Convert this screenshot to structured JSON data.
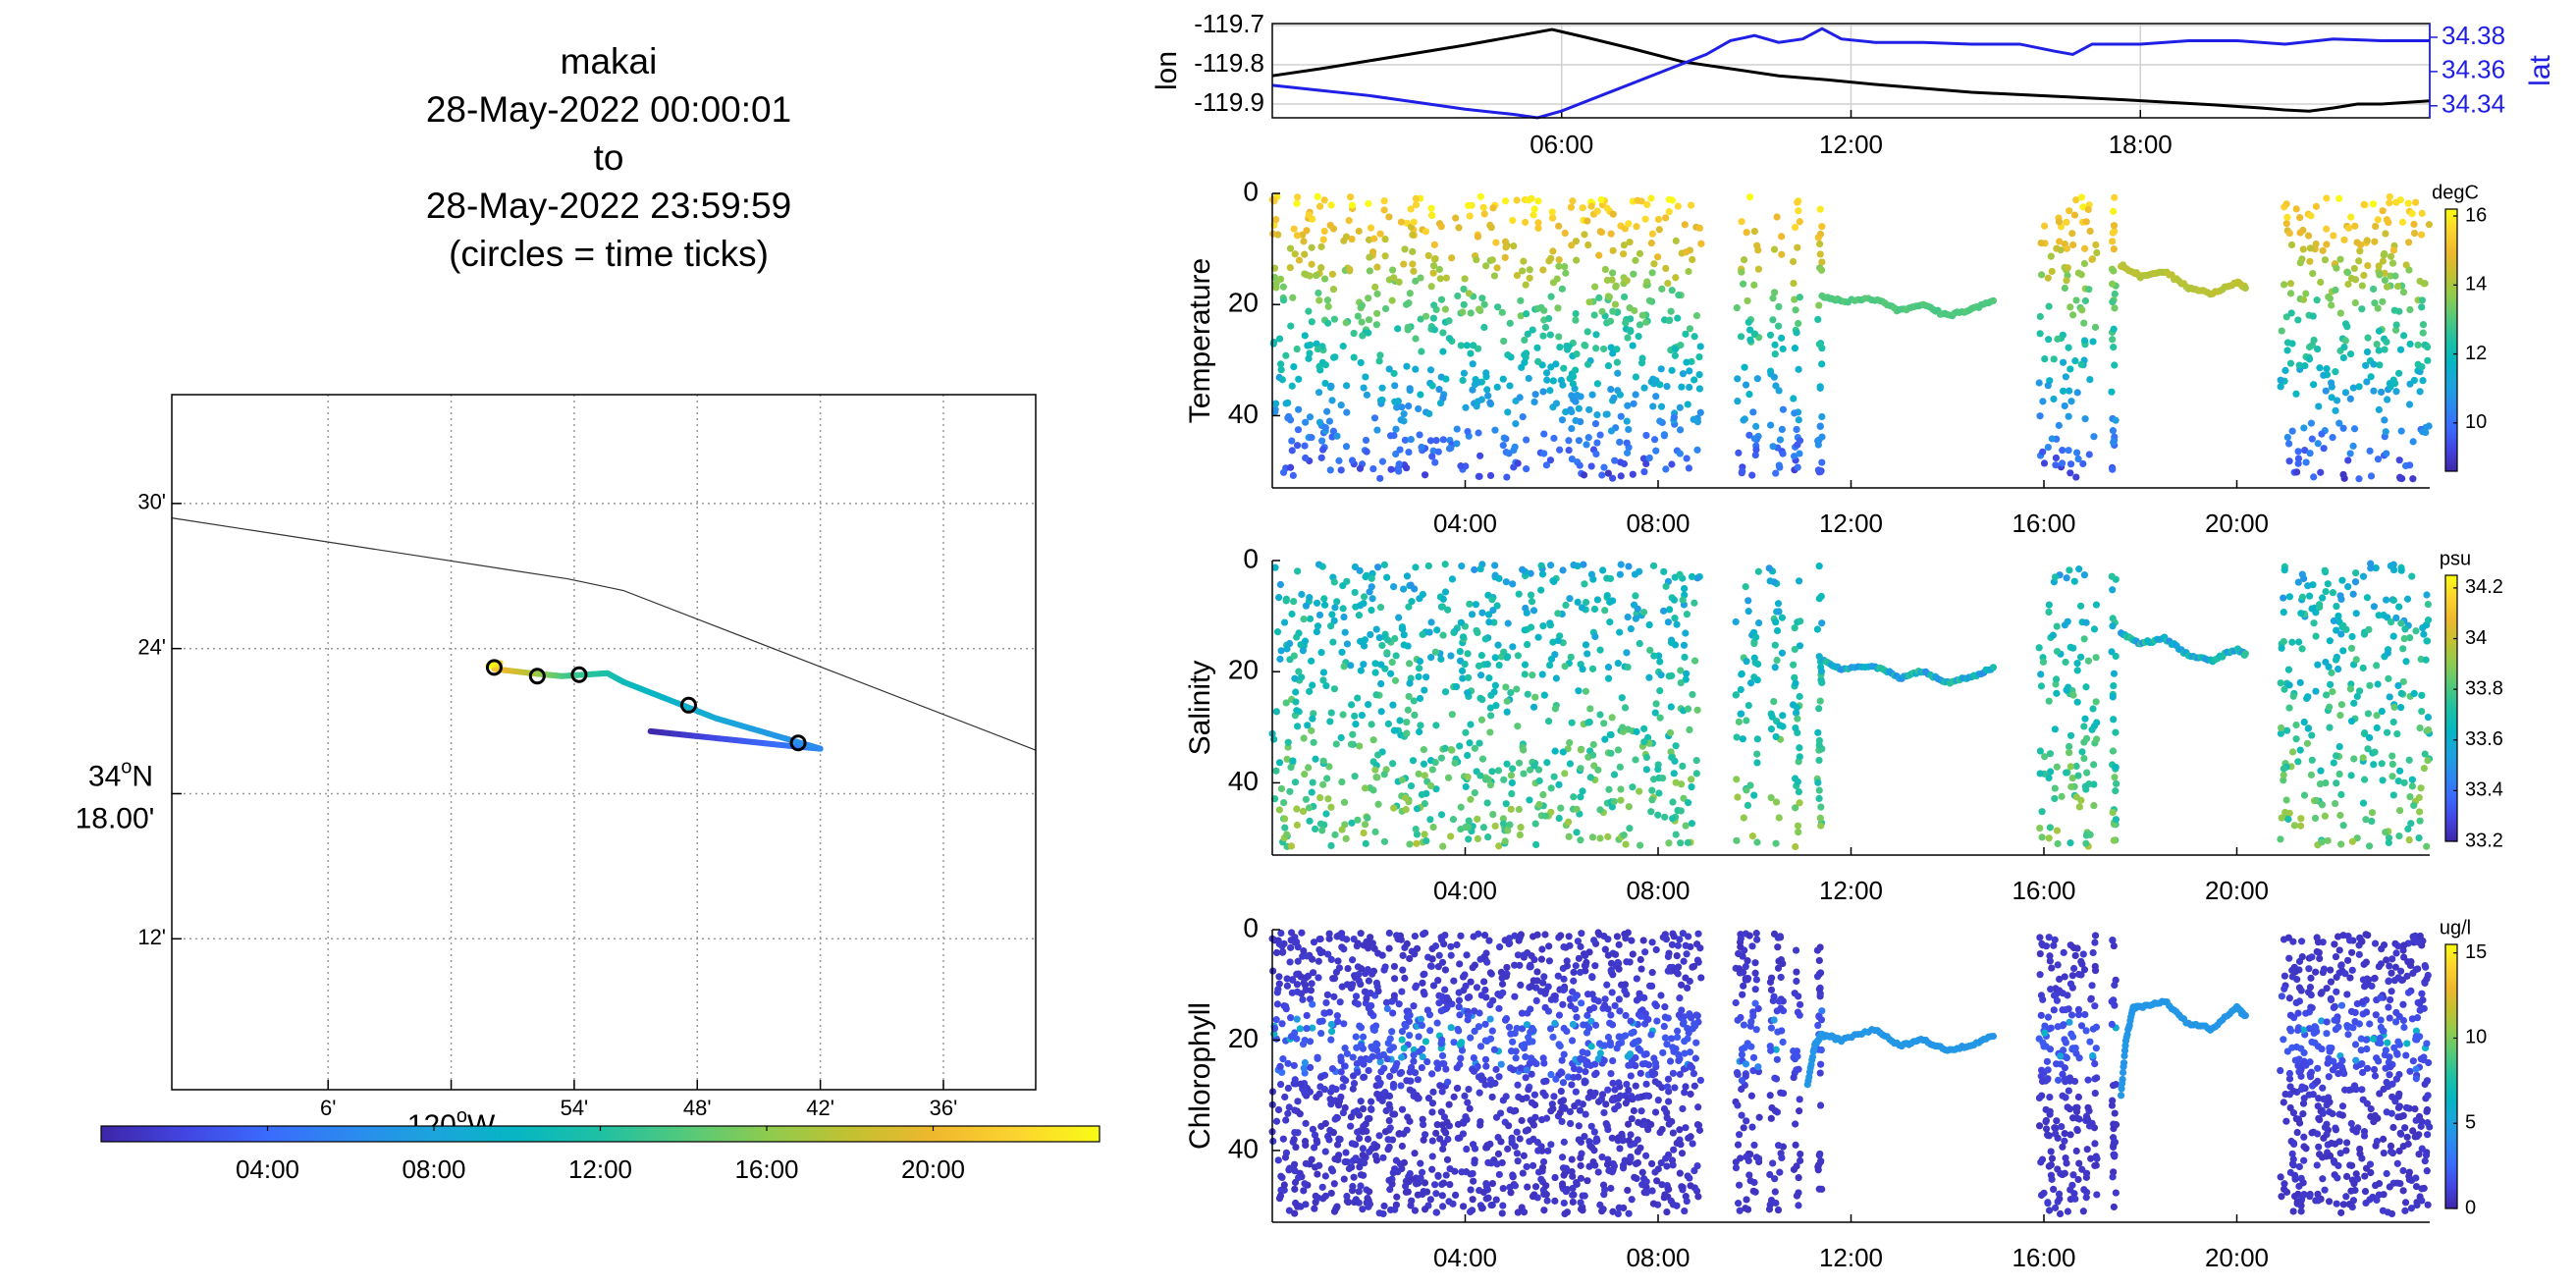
{
  "title": {
    "lines": [
      "makai",
      "28-May-2022 00:00:01",
      "to",
      "28-May-2022 23:59:59",
      "(circles = time ticks)"
    ]
  },
  "colors": {
    "lon_line": "#000000",
    "lat_line": "#1f1fe6",
    "axis": "#000000",
    "grid": "#b0b0b0",
    "parula": [
      "#3e26a8",
      "#4245e1",
      "#3a6bfc",
      "#2b8aef",
      "#1ba4dc",
      "#06b6c2",
      "#1fc0a3",
      "#52c97c",
      "#8dcb4f",
      "#c2c131",
      "#eeb82e",
      "#fcd42f",
      "#f9fb15"
    ]
  },
  "chart_data": [
    {
      "id": "track_map",
      "type": "scatter",
      "title": "",
      "xlabel": "",
      "ylabel": "",
      "xlim": [
        -120.227,
        -119.525
      ],
      "ylim": [
        34.096,
        34.575
      ],
      "x_ticks": [
        -120.1,
        -120.0,
        -119.9,
        -119.8,
        -119.7,
        -119.6
      ],
      "x_tick_labels": [
        "6'",
        "",
        "54'",
        "48'",
        "42'",
        "36'"
      ],
      "x_degree_label": "120",
      "x_degree_suffix": "W",
      "y_ticks": [
        34.2,
        34.3,
        34.4,
        34.5
      ],
      "y_tick_labels": [
        "12'",
        "",
        "24'",
        "30'"
      ],
      "y_degree_label": "34",
      "y_degree_suffix": "N",
      "y_degree_sublabel": "18.00'",
      "grid": true,
      "coastline": {
        "x": [
          -120.227,
          -119.905,
          -119.86,
          -119.525
        ],
        "y": [
          34.49,
          34.448,
          34.44,
          34.33
        ]
      },
      "track_segments": [
        {
          "hours": [
            0,
            4.5
          ],
          "x": [
            -119.838,
            -119.726
          ],
          "y": [
            34.343,
            34.333
          ]
        },
        {
          "hours": [
            4.5,
            5.8
          ],
          "x": [
            -119.726,
            -119.7
          ],
          "y": [
            34.333,
            34.331
          ]
        },
        {
          "hours": [
            5.8,
            8.5
          ],
          "x": [
            -119.7,
            -119.785
          ],
          "y": [
            34.331,
            34.352
          ]
        },
        {
          "hours": [
            8.5,
            10.5
          ],
          "x": [
            -119.785,
            -119.86
          ],
          "y": [
            34.352,
            34.377
          ]
        },
        {
          "hours": [
            10.5,
            11.6
          ],
          "x": [
            -119.86,
            -119.873
          ],
          "y": [
            34.377,
            34.383
          ]
        },
        {
          "hours": [
            11.6,
            13.5
          ],
          "x": [
            -119.873,
            -119.91
          ],
          "y": [
            34.383,
            34.381
          ]
        },
        {
          "hours": [
            13.5,
            17
          ],
          "x": [
            -119.91,
            -119.935
          ],
          "y": [
            34.381,
            34.383
          ]
        },
        {
          "hours": [
            17,
            20.5
          ],
          "x": [
            -119.935,
            -119.965
          ],
          "y": [
            34.383,
            34.386
          ]
        },
        {
          "hours": [
            20.5,
            22
          ],
          "x": [
            -119.965,
            -119.96
          ],
          "y": [
            34.386,
            34.39
          ]
        },
        {
          "hours": [
            22,
            24
          ],
          "x": [
            -119.96,
            -119.97
          ],
          "y": [
            34.39,
            34.388
          ]
        }
      ],
      "time_tick_circles": {
        "x": [
          -119.718,
          -119.807,
          -119.896,
          -119.93,
          -119.965
        ],
        "y": [
          34.335,
          34.361,
          34.382,
          34.381,
          34.387
        ]
      }
    },
    {
      "id": "time_colorbar",
      "type": "heatmap",
      "range": [
        0,
        24
      ],
      "ticks": [
        4,
        8,
        12,
        16,
        20
      ],
      "tick_labels": [
        "04:00",
        "08:00",
        "12:00",
        "16:00",
        "20:00"
      ]
    },
    {
      "id": "lon_lat",
      "type": "line",
      "xlim": [
        0,
        24
      ],
      "x_ticks": [
        6,
        12,
        18
      ],
      "x_tick_labels": [
        "06:00",
        "12:00",
        "18:00"
      ],
      "ylabel": "lon",
      "ylim": [
        -119.935,
        -119.695
      ],
      "y_ticks": [
        -119.9,
        -119.8,
        -119.7
      ],
      "y_tick_labels": [
        "-119.9",
        "-119.8",
        "-119.7"
      ],
      "y2label": "lat",
      "y2lim": [
        34.333,
        34.388
      ],
      "y2_ticks": [
        34.34,
        34.36,
        34.38
      ],
      "y2_tick_labels": [
        "34.34",
        "34.36",
        "34.38"
      ],
      "grid": true,
      "series": [
        {
          "axis": "left",
          "x": [
            0,
            1,
            2,
            3,
            4,
            5,
            5.8,
            6.5,
            7.5,
            8.5,
            9.5,
            10.5,
            11.5,
            12.5,
            13.5,
            14.5,
            15.5,
            16.5,
            17.5,
            18.5,
            19.5,
            20.5,
            21,
            21.5,
            22,
            22.5,
            23,
            24
          ],
          "y": [
            -119.828,
            -119.81,
            -119.79,
            -119.77,
            -119.75,
            -119.728,
            -119.71,
            -119.73,
            -119.76,
            -119.792,
            -119.81,
            -119.828,
            -119.838,
            -119.85,
            -119.86,
            -119.87,
            -119.876,
            -119.882,
            -119.888,
            -119.895,
            -119.902,
            -119.91,
            -119.915,
            -119.918,
            -119.91,
            -119.9,
            -119.9,
            -119.892
          ]
        },
        {
          "axis": "right",
          "x": [
            0,
            1,
            2,
            3,
            4,
            5,
            5.5,
            6,
            7,
            8,
            9,
            9.5,
            10,
            10.5,
            11,
            11.4,
            11.8,
            12.5,
            13.5,
            14.5,
            15.5,
            16.2,
            16.6,
            17,
            18,
            19,
            20,
            21,
            22,
            23,
            24
          ],
          "y": [
            34.352,
            34.349,
            34.346,
            34.342,
            34.338,
            34.335,
            34.333,
            34.337,
            34.348,
            34.359,
            34.37,
            34.378,
            34.381,
            34.377,
            34.379,
            34.385,
            34.379,
            34.377,
            34.377,
            34.376,
            34.376,
            34.372,
            34.37,
            34.376,
            34.376,
            34.378,
            34.378,
            34.376,
            34.379,
            34.378,
            34.378
          ]
        }
      ]
    },
    {
      "id": "temperature",
      "type": "scatter",
      "ylabel": "Temperature",
      "xlim": [
        0,
        24
      ],
      "x_ticks": [
        4,
        8,
        12,
        16,
        20
      ],
      "x_tick_labels": [
        "04:00",
        "08:00",
        "12:00",
        "16:00",
        "20:00"
      ],
      "ylim": [
        0,
        53
      ],
      "y_reversed": true,
      "y_ticks": [
        0,
        20,
        40
      ],
      "y_tick_labels": [
        "0",
        "20",
        "40"
      ],
      "colorbar": {
        "label": "degC",
        "range": [
          8.6,
          16.2
        ],
        "ticks": [
          10,
          12,
          14,
          16
        ],
        "tick_labels": [
          "10",
          "12",
          "14",
          "16"
        ]
      },
      "profile_windows": [
        [
          0,
          8.9
        ],
        [
          9.6,
          10.1
        ],
        [
          10.3,
          10.6
        ],
        [
          10.8,
          10.95
        ],
        [
          11.3,
          11.4
        ],
        [
          15.9,
          17.1
        ],
        [
          17.4,
          17.5
        ],
        [
          20.9,
          24
        ]
      ],
      "surface_value": 16,
      "bottom_value": 9.2,
      "thermocline_depth": 17,
      "level_segments": [
        {
          "x": [
            11.4,
            11.8,
            12.5,
            13,
            13.5,
            14,
            14.5,
            15
          ],
          "depth": [
            18.5,
            19.5,
            19,
            21,
            20,
            22,
            21,
            19
          ],
          "value": 13
        },
        {
          "x": [
            17.6,
            18,
            18.5,
            19,
            19.5,
            20,
            20.2
          ],
          "depth": [
            13,
            15,
            14,
            17,
            18,
            16,
            17
          ],
          "value": 14.2
        }
      ]
    },
    {
      "id": "salinity",
      "type": "scatter",
      "ylabel": "Salinity",
      "xlim": [
        0,
        24
      ],
      "x_ticks": [
        4,
        8,
        12,
        16,
        20
      ],
      "x_tick_labels": [
        "04:00",
        "08:00",
        "12:00",
        "16:00",
        "20:00"
      ],
      "ylim": [
        0,
        53
      ],
      "y_reversed": true,
      "y_ticks": [
        0,
        20,
        40
      ],
      "y_tick_labels": [
        "0",
        "20",
        "40"
      ],
      "colorbar": {
        "label": "psu",
        "range": [
          33.2,
          34.25
        ],
        "ticks": [
          33.2,
          33.4,
          33.6,
          33.8,
          34,
          34.2
        ],
        "tick_labels": [
          "33.2",
          "33.4",
          "33.6",
          "33.8",
          "34",
          "34.2"
        ]
      },
      "profile_windows": [
        [
          0,
          8.9
        ],
        [
          9.6,
          10.1
        ],
        [
          10.3,
          10.6
        ],
        [
          10.8,
          10.95
        ],
        [
          11.3,
          11.4
        ],
        [
          15.9,
          17.1
        ],
        [
          17.4,
          17.5
        ],
        [
          20.9,
          24
        ]
      ],
      "surface_value": 33.6,
      "bottom_value": 33.85,
      "level_segments": [
        {
          "x": [
            11.4,
            11.8,
            12.5,
            13,
            13.5,
            14,
            14.5,
            15
          ],
          "depth": [
            18,
            19.5,
            19,
            21,
            20,
            22,
            21,
            19
          ],
          "value": 33.62
        },
        {
          "x": [
            17.6,
            18,
            18.5,
            19,
            19.5,
            20,
            20.2
          ],
          "depth": [
            13,
            15,
            14,
            17,
            18,
            16,
            17
          ],
          "value": 33.62
        }
      ]
    },
    {
      "id": "chlorophyll",
      "type": "scatter",
      "ylabel": "Chlorophyll",
      "xlim": [
        0,
        24
      ],
      "x_ticks": [
        4,
        8,
        12,
        16,
        20
      ],
      "x_tick_labels": [
        "04:00",
        "08:00",
        "12:00",
        "16:00",
        "20:00"
      ],
      "ylim": [
        0,
        53
      ],
      "y_reversed": true,
      "y_ticks": [
        0,
        20,
        40
      ],
      "y_tick_labels": [
        "0",
        "20",
        "40"
      ],
      "colorbar": {
        "label": "ug/l",
        "range": [
          0,
          15.5
        ],
        "ticks": [
          0,
          5,
          10,
          15
        ],
        "tick_labels": [
          "0",
          "5",
          "10",
          "15"
        ]
      },
      "profile_windows": [
        [
          0,
          8.9
        ],
        [
          9.6,
          10.1
        ],
        [
          10.3,
          10.6
        ],
        [
          10.8,
          10.95
        ],
        [
          11.3,
          11.4
        ],
        [
          15.9,
          17.1
        ],
        [
          17.4,
          17.5
        ],
        [
          20.9,
          24
        ]
      ],
      "surface_value": 0.5,
      "peak_value": 6,
      "peak_depth": 20,
      "level_segments": [
        {
          "x": [
            11.1,
            11.25,
            11.4,
            11.8,
            12.5,
            13,
            13.5,
            14,
            14.5,
            15
          ],
          "depth": [
            28,
            21,
            19,
            20,
            18,
            21,
            20,
            22,
            21,
            19
          ],
          "value": 4.5
        },
        {
          "x": [
            17.6,
            17.7,
            17.85,
            18,
            18.5,
            19,
            19.5,
            20,
            20.2
          ],
          "depth": [
            30,
            20,
            14,
            14,
            13,
            17,
            18,
            14,
            16
          ],
          "value": 4.5
        }
      ]
    }
  ]
}
